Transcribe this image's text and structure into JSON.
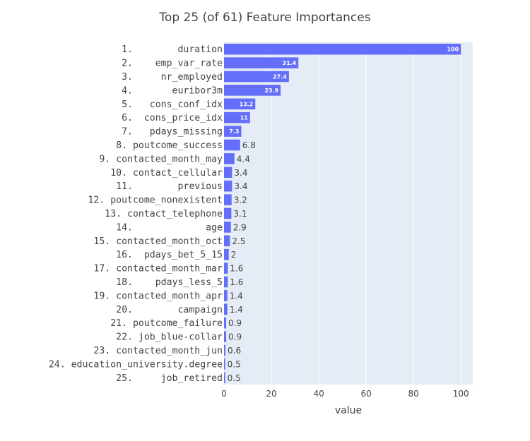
{
  "chart_data": {
    "type": "bar",
    "orientation": "horizontal",
    "title": "Top 25 (of 61) Feature Importances",
    "xlabel": "value",
    "ylabel": "",
    "xlim": [
      0,
      105
    ],
    "xticks": [
      0,
      20,
      40,
      60,
      80,
      100
    ],
    "grid": true,
    "bar_color": "#636efa",
    "plot_bg": "#e5ecf6",
    "categories": [
      "1.        duration",
      "2.    emp_var_rate",
      "3.     nr_employed",
      "4.       euribor3m",
      "5.   cons_conf_idx",
      "6.  cons_price_idx",
      "7.   pdays_missing",
      "8. poutcome_success",
      "9. contacted_month_may",
      "10. contact_cellular",
      "11.        previous",
      "12. poutcome_nonexistent",
      "13. contact_telephone",
      "14.             age",
      "15. contacted_month_oct",
      "16.  pdays_bet_5_15",
      "17. contacted_month_mar",
      "18.    pdays_less_5",
      "19. contacted_month_apr",
      "20.        campaign",
      "21. poutcome_failure",
      "22. job_blue-collar",
      "23. contacted_month_jun",
      "24. education_university.degree",
      "25.     job_retired"
    ],
    "values": [
      100,
      31.4,
      27.4,
      23.9,
      13.2,
      11,
      7.3,
      6.8,
      4.4,
      3.4,
      3.4,
      3.2,
      3.1,
      2.9,
      2.5,
      2,
      1.6,
      1.6,
      1.4,
      1.4,
      0.9,
      0.9,
      0.6,
      0.5,
      0.5
    ],
    "value_labels": [
      "100",
      "31.4",
      "27.4",
      "23.9",
      "13.2",
      "11",
      "7.3",
      "6.8",
      "4.4",
      "3.4",
      "3.4",
      "3.2",
      "3.1",
      "2.9",
      "2.5",
      "2",
      "1.6",
      "1.6",
      "1.4",
      "1.4",
      "0.9",
      "0.9",
      "0.6",
      "0.5",
      "0.5"
    ]
  }
}
